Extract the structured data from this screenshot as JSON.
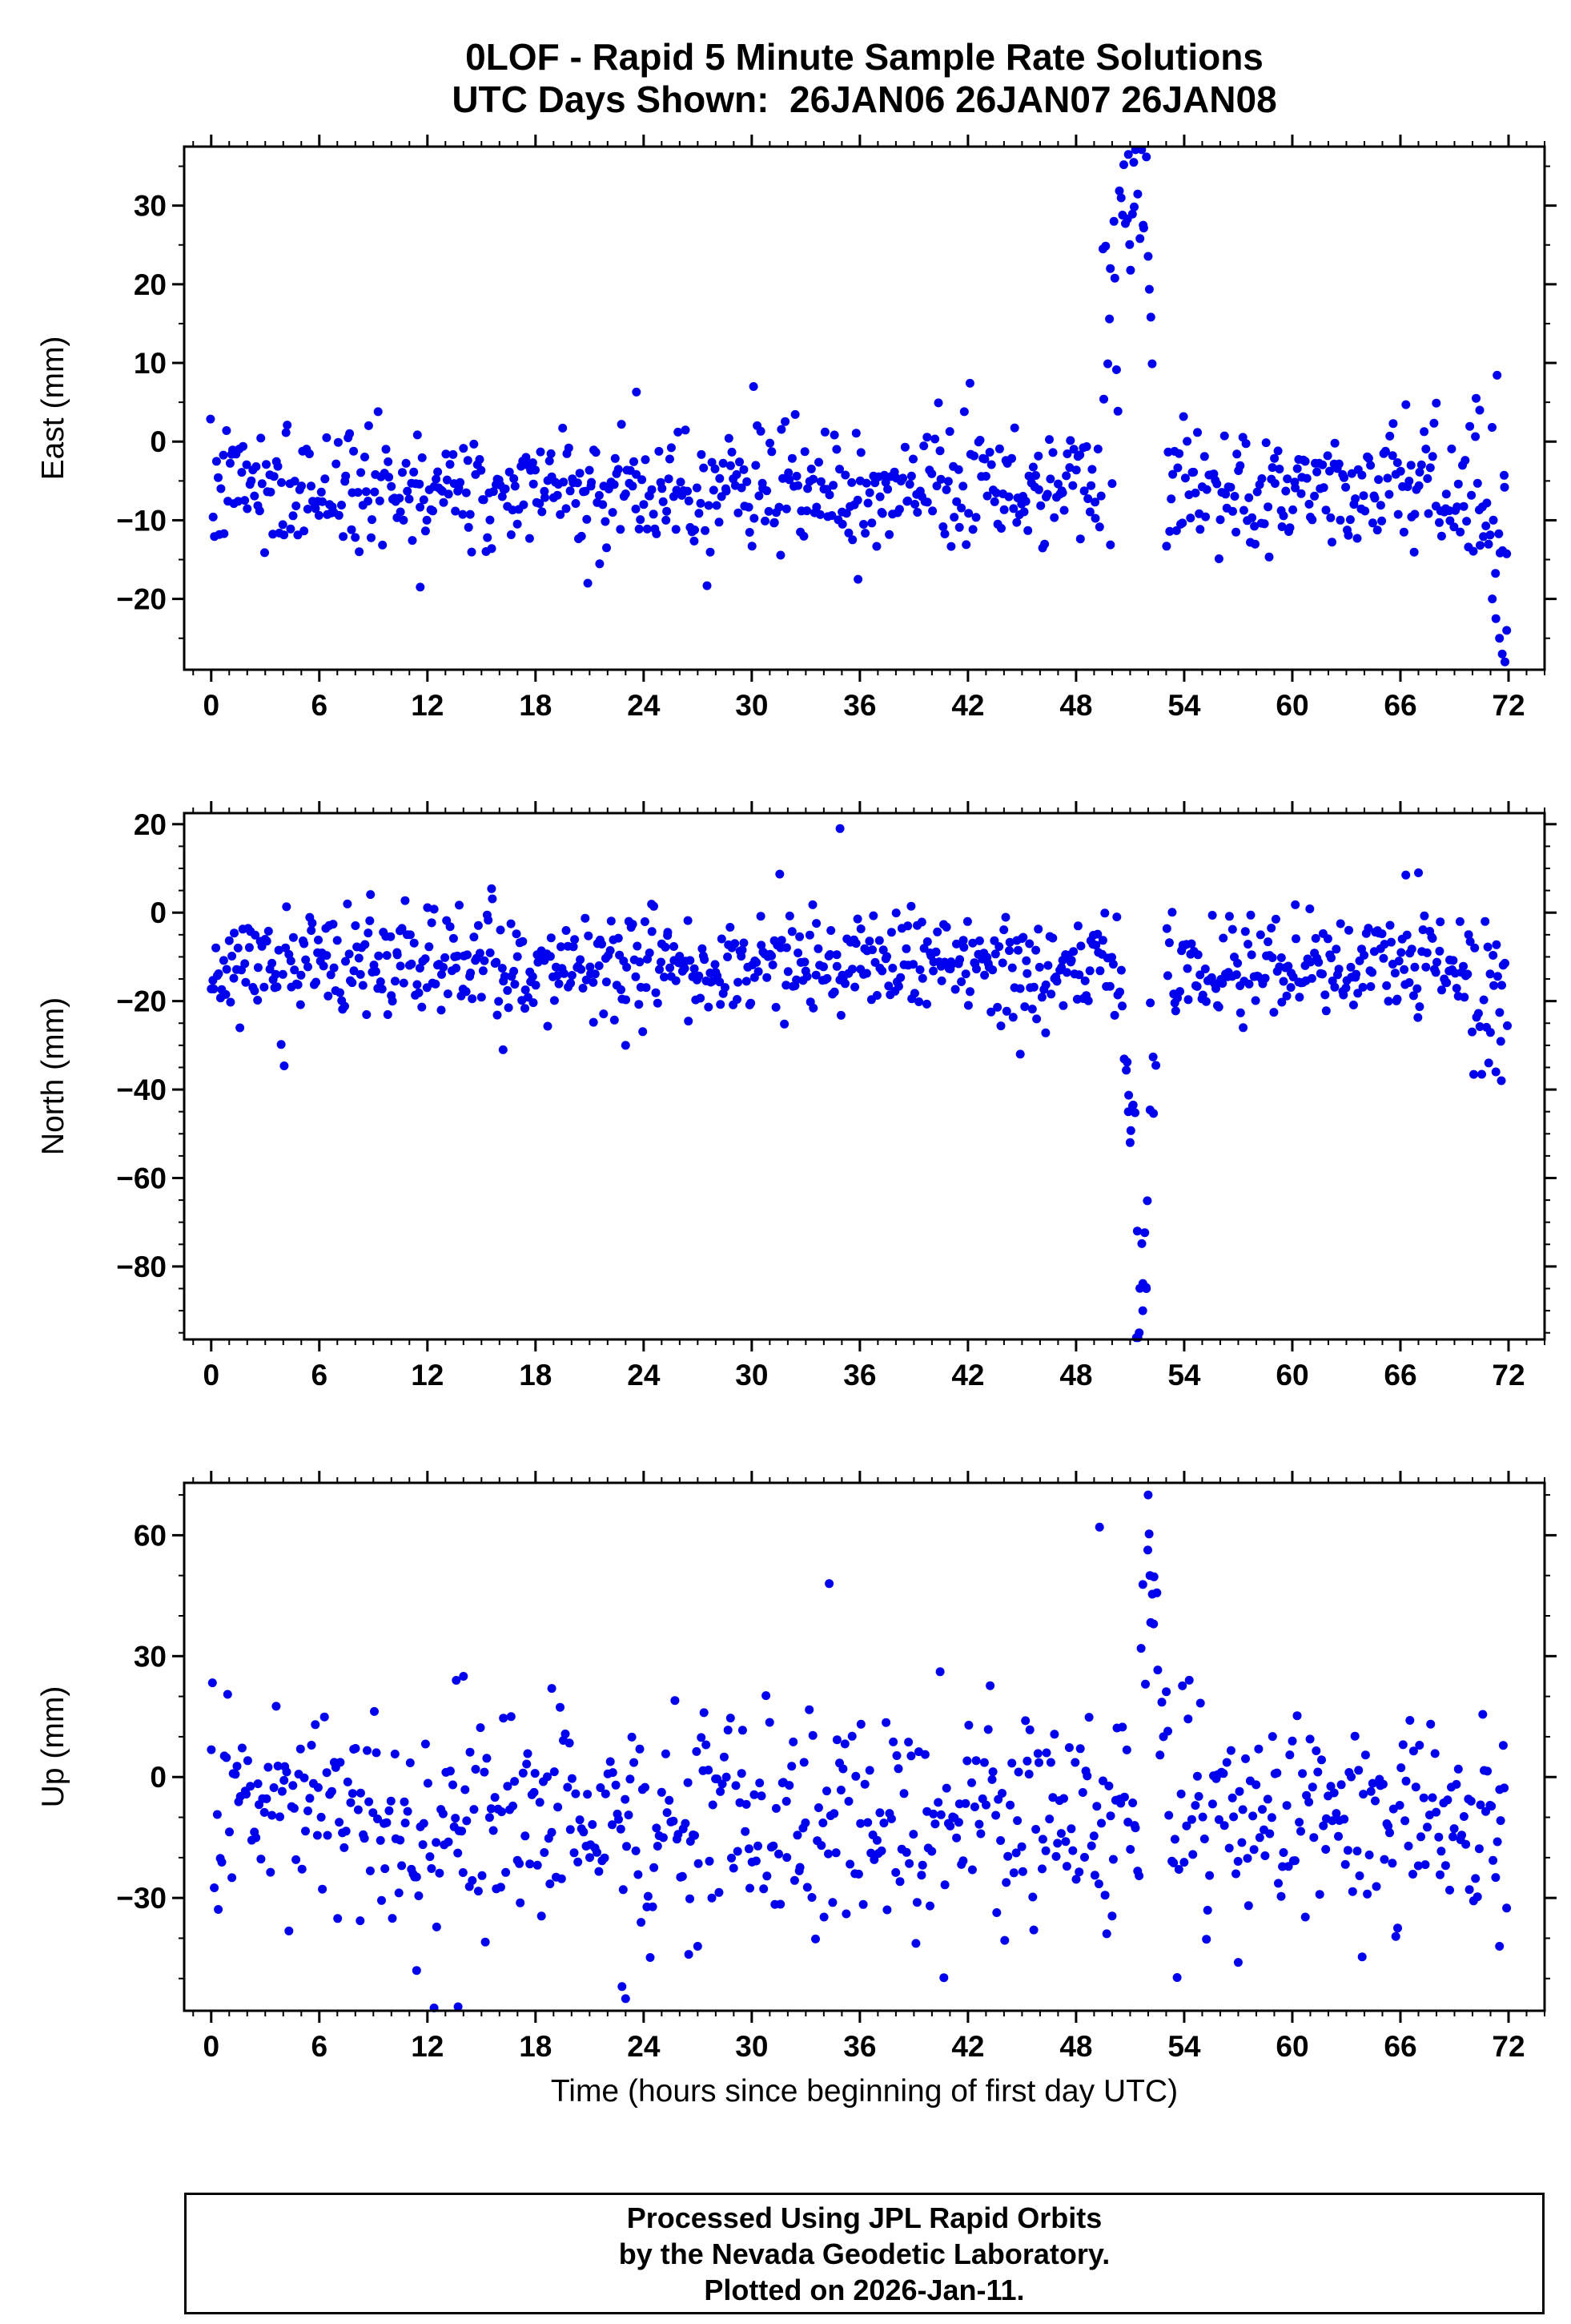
{
  "page": {
    "title_line1": "0LOF - Rapid 5 Minute Sample Rate Solutions",
    "title_line2": "UTC Days Shown:  26JAN06 26JAN07 26JAN08",
    "xlabel": "Time (hours since beginning of first day UTC)",
    "footer_lines": [
      "Processed Using JPL Rapid Orbits",
      "by the Nevada Geodetic Laboratory.",
      "Plotted on 2026-Jan-11."
    ]
  },
  "colors": {
    "point": "#0000EE",
    "frame": "#000000",
    "text": "#000000",
    "background": "#FFFFFF"
  },
  "chart_data": [
    {
      "type": "scatter",
      "panel": "east",
      "ylabel": "East (mm)",
      "units": "mm",
      "x_units": "hours",
      "xlim": [
        -1.5,
        74
      ],
      "ylim": [
        -29,
        37.5
      ],
      "xticks": [
        0,
        6,
        12,
        18,
        24,
        30,
        36,
        42,
        48,
        54,
        60,
        66,
        72
      ],
      "x_minor_step": 1,
      "yticks": [
        -20,
        -10,
        0,
        10,
        20,
        30
      ],
      "y_minor_step": 5,
      "grid": false,
      "legend": false,
      "marker": {
        "shape": "circle",
        "radius_px": 5.5
      },
      "sampling": {
        "start_hour": 0,
        "end_hour": 72,
        "count": 780,
        "seed": 7,
        "interval_min": 5
      },
      "baseline": {
        "mean_mm": -6,
        "std_mm": 3.8
      },
      "segments": [
        {
          "x0": 49.4,
          "x1": 50.4,
          "mean_mm": 10,
          "std_mm": 9
        },
        {
          "x0": 50.4,
          "x1": 51.9,
          "mean_mm": 28,
          "std_mm": 5
        },
        {
          "x0": 51.9,
          "x1": 52.3,
          "mean_mm": 14,
          "std_mm": 9
        },
        {
          "x0": 69.8,
          "x1": 72.0,
          "mean_mm": -7,
          "std_mm": 5
        }
      ],
      "gaps": [
        {
          "x0": 52.3,
          "x1": 52.9
        }
      ],
      "outliers": [
        [
          23.6,
          6.3
        ],
        [
          30.1,
          7
        ],
        [
          11.6,
          -18.5
        ],
        [
          20.9,
          -18
        ],
        [
          35.9,
          -17.5
        ],
        [
          70.2,
          5.5
        ],
        [
          70.4,
          4
        ],
        [
          71.1,
          -20
        ],
        [
          71.3,
          -22.5
        ],
        [
          71.5,
          -25
        ],
        [
          71.65,
          -27
        ],
        [
          71.8,
          -28
        ],
        [
          71.9,
          -24
        ],
        [
          50.9,
          36.5
        ],
        [
          51.2,
          35.5
        ],
        [
          49.9,
          22
        ],
        [
          50.1,
          28
        ]
      ]
    },
    {
      "type": "scatter",
      "panel": "north",
      "ylabel": "North (mm)",
      "units": "mm",
      "x_units": "hours",
      "xlim": [
        -1.5,
        74
      ],
      "ylim": [
        -96.5,
        22.5
      ],
      "xticks": [
        0,
        6,
        12,
        18,
        24,
        30,
        36,
        42,
        48,
        54,
        60,
        66,
        72
      ],
      "x_minor_step": 1,
      "yticks": [
        -80,
        -60,
        -40,
        -20,
        0,
        20
      ],
      "y_minor_step": 5,
      "grid": false,
      "legend": false,
      "marker": {
        "shape": "circle",
        "radius_px": 5.5
      },
      "sampling": {
        "start_hour": 0,
        "end_hour": 72,
        "count": 820,
        "seed": 11,
        "interval_min": 5
      },
      "baseline": {
        "mean_mm": -12,
        "std_mm": 6
      },
      "segments": [
        {
          "x0": 50.6,
          "x1": 51.3,
          "mean_mm": -38,
          "std_mm": 8
        },
        {
          "x0": 51.3,
          "x1": 52.1,
          "mean_mm": -83,
          "std_mm": 8
        },
        {
          "x0": 52.1,
          "x1": 52.5,
          "mean_mm": -30,
          "std_mm": 10
        },
        {
          "x0": 69.8,
          "x1": 72.0,
          "mean_mm": -18,
          "std_mm": 8
        }
      ],
      "gaps": [
        {
          "x0": 52.5,
          "x1": 53.0
        }
      ],
      "outliers": [
        [
          34.9,
          19
        ],
        [
          44.9,
          -32
        ],
        [
          70.9,
          -34
        ],
        [
          71.3,
          -36
        ],
        [
          71.6,
          -38
        ],
        [
          23.0,
          -30
        ],
        [
          16.2,
          -31
        ],
        [
          66.3,
          8.5
        ],
        [
          67.0,
          9
        ],
        [
          51.5,
          -95
        ],
        [
          51.7,
          -90
        ],
        [
          51.9,
          -85
        ],
        [
          51.4,
          -72
        ],
        [
          51.0,
          -52
        ],
        [
          50.9,
          -45
        ]
      ]
    },
    {
      "type": "scatter",
      "panel": "up",
      "ylabel": "Up (mm)",
      "units": "mm",
      "x_units": "hours",
      "xlim": [
        -1.5,
        74
      ],
      "ylim": [
        -58,
        73
      ],
      "xticks": [
        0,
        6,
        12,
        18,
        24,
        30,
        36,
        42,
        48,
        54,
        60,
        66,
        72
      ],
      "x_minor_step": 1,
      "yticks": [
        -30,
        0,
        30,
        60
      ],
      "y_minor_step": 10,
      "grid": false,
      "legend": false,
      "marker": {
        "shape": "circle",
        "radius_px": 5.5
      },
      "sampling": {
        "start_hour": 0,
        "end_hour": 72,
        "count": 700,
        "seed": 13,
        "interval_min": 5
      },
      "baseline": {
        "mean_mm": -10,
        "std_mm": 13
      },
      "segments": [
        {
          "x0": 51.5,
          "x1": 52.5,
          "mean_mm": 42,
          "std_mm": 8
        },
        {
          "x0": 52.5,
          "x1": 53.2,
          "mean_mm": 8,
          "std_mm": 12
        }
      ],
      "gaps": [],
      "outliers": [
        [
          49.3,
          62
        ],
        [
          52.0,
          70
        ],
        [
          34.3,
          48
        ],
        [
          23.0,
          -55
        ],
        [
          22.8,
          -52
        ],
        [
          11.4,
          -48
        ],
        [
          13.7,
          -57
        ],
        [
          57.0,
          -46
        ],
        [
          71.5,
          -42
        ],
        [
          26.5,
          -44
        ],
        [
          27.0,
          -42
        ],
        [
          14.0,
          25
        ],
        [
          13.6,
          24
        ],
        [
          18.9,
          22
        ],
        [
          52.1,
          50
        ],
        [
          52.3,
          38
        ]
      ]
    }
  ]
}
